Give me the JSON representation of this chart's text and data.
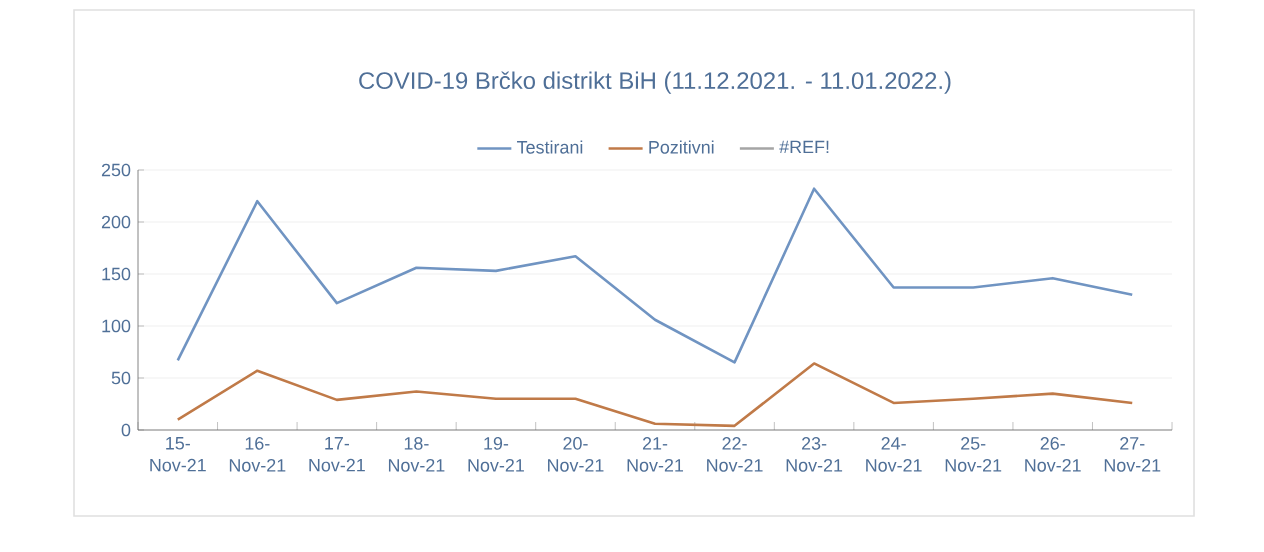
{
  "chart_data": {
    "type": "line",
    "title": "COVID-19 Brčko distrikt BiH (11.12.2021. - 11.01.2022.)",
    "categories": [
      "15-Nov-21",
      "16-Nov-21",
      "17-Nov-21",
      "18-Nov-21",
      "19-Nov-21",
      "20-Nov-21",
      "21-Nov-21",
      "22-Nov-21",
      "23-Nov-21",
      "24-Nov-21",
      "25-Nov-21",
      "26-Nov-21",
      "27-Nov-21"
    ],
    "series": [
      {
        "name": "Testirani",
        "color": "#7094c2",
        "values": [
          67,
          220,
          122,
          156,
          153,
          167,
          106,
          65,
          232,
          137,
          137,
          146,
          130
        ]
      },
      {
        "name": "Pozitivni",
        "color": "#c07a48",
        "values": [
          10,
          57,
          29,
          37,
          30,
          30,
          6,
          4,
          64,
          26,
          30,
          35,
          26
        ]
      },
      {
        "name": "#REF!",
        "color": "#a5a5a5",
        "values": [
          null,
          null,
          null,
          null,
          null,
          null,
          null,
          null,
          null,
          null,
          null,
          null,
          null
        ]
      }
    ],
    "ylim": [
      0,
      250
    ],
    "yticks": [
      0,
      50,
      100,
      150,
      200,
      250
    ],
    "grid": "y",
    "legend": "top",
    "marker": "none",
    "line_style": "solid"
  }
}
